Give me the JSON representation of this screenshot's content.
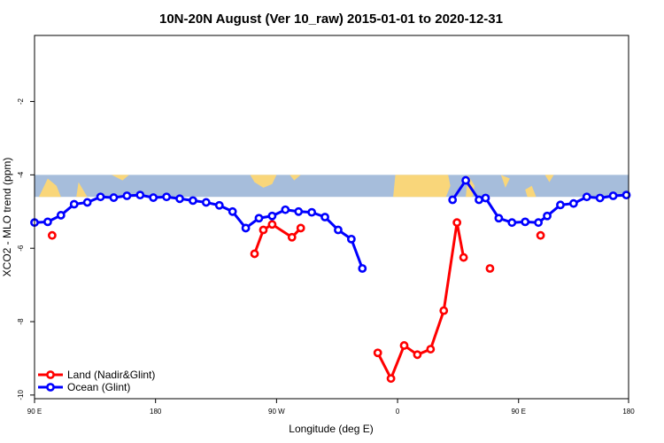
{
  "chart_data": {
    "type": "line",
    "title": "10N-20N August (Ver 10_raw)   2015-01-01 to 2020-12-31",
    "xlabel": "Longitude (deg E)",
    "ylabel": "XCO2 - MLO trend (ppm)",
    "xlim": [
      -90,
      180
    ],
    "ylim": [
      -10.1,
      -0.2
    ],
    "x_ticks": [
      {
        "value": -90,
        "label": "90 E"
      },
      {
        "value": -35,
        "label": "180"
      },
      {
        "value": 20,
        "label": "90 W"
      },
      {
        "value": 75,
        "label": "0"
      },
      {
        "value": 130,
        "label": "90 E"
      },
      {
        "value": 180,
        "label": "180"
      }
    ],
    "y_ticks": [
      -2,
      -4,
      -6,
      -8,
      -10
    ],
    "map_strip": {
      "y_from": -4.6,
      "y_to": -4.0,
      "ocean_color": "#a6bddb",
      "land_color": "#f9d67a"
    },
    "series": [
      {
        "name": "Land (Nadir&Glint)",
        "color": "#ff0000",
        "segments": [
          [
            [
              -82,
              -5.65
            ]
          ],
          [
            [
              10,
              -6.15
            ],
            [
              14,
              -5.5
            ],
            [
              18,
              -5.35
            ],
            [
              27,
              -5.7
            ],
            [
              31,
              -5.45
            ]
          ],
          [
            [
              66,
              -8.85
            ],
            [
              72,
              -9.55
            ],
            [
              78,
              -8.65
            ],
            [
              84,
              -8.9
            ],
            [
              90,
              -8.75
            ],
            [
              96,
              -7.7
            ],
            [
              102,
              -5.3
            ],
            [
              105,
              -6.25
            ]
          ],
          [
            [
              117,
              -6.55
            ]
          ],
          [
            [
              140,
              -5.65
            ]
          ]
        ]
      },
      {
        "name": "Ocean (Glint)",
        "color": "#0000ff",
        "segments": [
          [
            [
              -90,
              -5.3
            ],
            [
              -84,
              -5.28
            ],
            [
              -78,
              -5.1
            ],
            [
              -72,
              -4.8
            ],
            [
              -66,
              -4.75
            ],
            [
              -60,
              -4.6
            ],
            [
              -54,
              -4.62
            ],
            [
              -48,
              -4.57
            ],
            [
              -42,
              -4.55
            ],
            [
              -36,
              -4.62
            ],
            [
              -30,
              -4.6
            ],
            [
              -24,
              -4.65
            ],
            [
              -18,
              -4.7
            ],
            [
              -12,
              -4.75
            ],
            [
              -6,
              -4.83
            ],
            [
              0,
              -5.0
            ],
            [
              6,
              -5.45
            ],
            [
              12,
              -5.18
            ],
            [
              18,
              -5.12
            ],
            [
              24,
              -4.95
            ],
            [
              30,
              -5.0
            ],
            [
              36,
              -5.02
            ],
            [
              42,
              -5.15
            ],
            [
              48,
              -5.5
            ],
            [
              54,
              -5.75
            ],
            [
              59,
              -6.55
            ]
          ],
          [
            [
              100,
              -4.68
            ],
            [
              106,
              -4.15
            ],
            [
              112,
              -4.68
            ],
            [
              115,
              -4.63
            ],
            [
              121,
              -5.18
            ],
            [
              127,
              -5.3
            ],
            [
              133,
              -5.28
            ],
            [
              139,
              -5.3
            ],
            [
              143,
              -5.12
            ],
            [
              149,
              -4.82
            ],
            [
              155,
              -4.78
            ],
            [
              161,
              -4.6
            ],
            [
              167,
              -4.63
            ],
            [
              173,
              -4.57
            ],
            [
              179,
              -4.55
            ]
          ]
        ]
      }
    ],
    "legend": {
      "position": "bottom-left"
    }
  }
}
